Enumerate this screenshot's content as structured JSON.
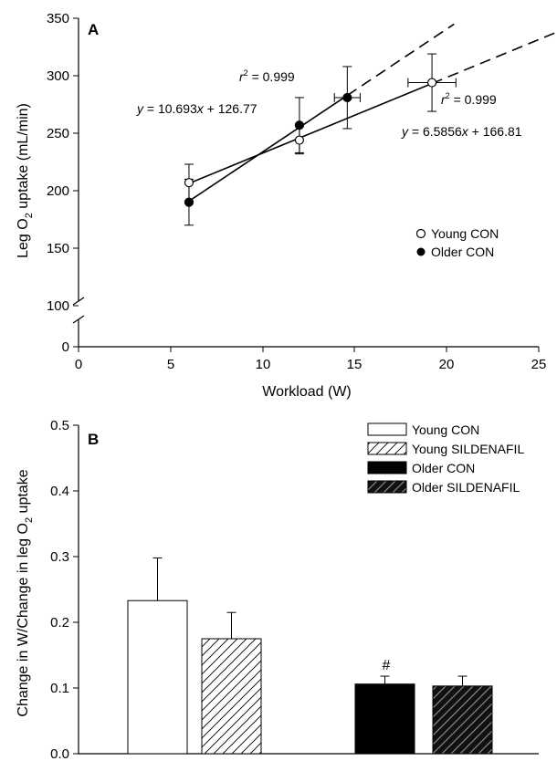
{
  "chart_data": [
    {
      "type": "scatter",
      "panel": "A",
      "xlabel": "Workload (W)",
      "ylabel_main": "Leg O",
      "ylabel_sub": "2",
      "ylabel_end": " uptake (mL/min)",
      "xlim": [
        0,
        25
      ],
      "xticks": [
        "0",
        "5",
        "10",
        "15",
        "20",
        "25"
      ],
      "ylim_broken": [
        100,
        350
      ],
      "yticks": [
        "0",
        "100",
        "150",
        "200",
        "250",
        "300",
        "350"
      ],
      "series": [
        {
          "name": "Young CON",
          "marker": "open",
          "points": [
            {
              "x": 6,
              "y": 207,
              "yerr": 16,
              "xerr": 0
            },
            {
              "x": 12,
              "y": 244,
              "yerr": 12,
              "xerr": 0
            },
            {
              "x": 19.2,
              "y": 294,
              "yerr": 25,
              "xerr": 1.3
            }
          ],
          "fit": {
            "slope": 6.5856,
            "intercept": 166.81,
            "x_end": 26
          }
        },
        {
          "name": "Older CON",
          "marker": "filled",
          "points": [
            {
              "x": 6,
              "y": 190,
              "yerr": 20,
              "xerr": 0
            },
            {
              "x": 12,
              "y": 257,
              "yerr": 24,
              "xerr": 0
            },
            {
              "x": 14.6,
              "y": 281,
              "yerr": 27,
              "xerr": 0.7
            }
          ],
          "fit": {
            "slope": 10.693,
            "intercept": 126.77,
            "x_end": 20.4
          }
        }
      ],
      "annotations": {
        "older_eq": "y = 10.693x + 126.77",
        "older_r2": "r² = 0.999",
        "young_eq": "y = 6.5856x + 166.81",
        "young_r2": "r² = 0.999"
      },
      "legend": [
        "Young CON",
        "Older CON"
      ]
    },
    {
      "type": "bar",
      "panel": "B",
      "ylabel_main": "Change in W/Change in leg O",
      "ylabel_sub": "2",
      "ylabel_end": " uptake",
      "ylim": [
        0,
        0.5
      ],
      "yticks": [
        "0.0",
        "0.1",
        "0.2",
        "0.3",
        "0.4",
        "0.5"
      ],
      "bars": [
        {
          "name": "Young CON",
          "value": 0.233,
          "err": 0.065,
          "fill": "white"
        },
        {
          "name": "Young SILDENAFIL",
          "value": 0.175,
          "err": 0.04,
          "fill": "hatch-white"
        },
        {
          "name": "Older CON",
          "value": 0.106,
          "err": 0.012,
          "fill": "black",
          "annotation": "#"
        },
        {
          "name": "Older SILDENAFIL",
          "value": 0.103,
          "err": 0.015,
          "fill": "hatch-black"
        }
      ],
      "legend": [
        "Young CON",
        "Young SILDENAFIL",
        "Older CON",
        "Older SILDENAFIL"
      ]
    }
  ]
}
